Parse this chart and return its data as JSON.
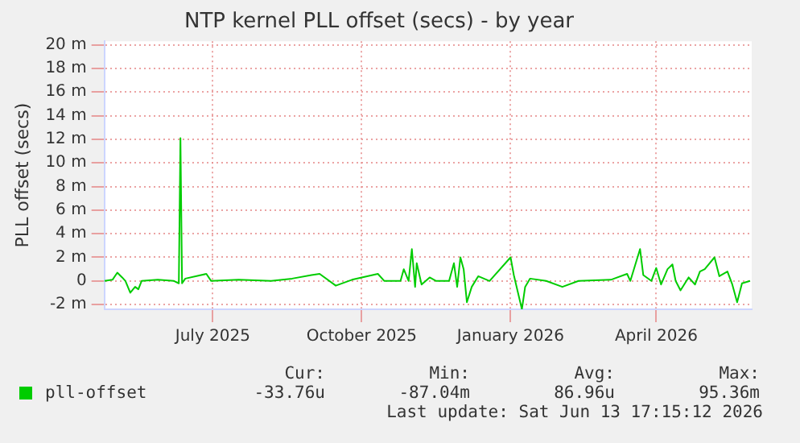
{
  "chart_data": {
    "type": "line",
    "title": "NTP kernel PLL offset (secs) - by year",
    "ylabel": "PLL offset (secs)",
    "x": [
      "2025-05-09",
      "2025-05-14",
      "2025-05-17",
      "2025-05-20",
      "2025-05-22",
      "2025-05-25",
      "2025-05-28",
      "2025-05-30",
      "2025-06-01",
      "2025-06-11",
      "2025-06-21",
      "2025-06-24",
      "2025-06-25",
      "2025-06-26",
      "2025-06-28",
      "2025-07-11",
      "2025-07-14",
      "2025-07-31",
      "2025-08-20",
      "2025-09-02",
      "2025-09-14",
      "2025-09-19",
      "2025-09-29",
      "2025-10-09",
      "2025-10-25",
      "2025-10-29",
      "2025-11-08",
      "2025-11-10",
      "2025-11-13",
      "2025-11-15",
      "2025-11-17",
      "2025-11-18",
      "2025-11-21",
      "2025-11-26",
      "2025-11-30",
      "2025-12-08",
      "2025-12-11",
      "2025-12-13",
      "2025-12-15",
      "2025-12-17",
      "2025-12-19",
      "2025-12-22",
      "2025-12-26",
      "2026-01-02",
      "2026-01-15",
      "2026-01-17",
      "2026-01-22",
      "2026-01-24",
      "2026-01-27",
      "2026-02-06",
      "2026-02-16",
      "2026-02-26",
      "2026-03-18",
      "2026-03-28",
      "2026-03-30",
      "2026-04-05",
      "2026-04-07",
      "2026-04-12",
      "2026-04-15",
      "2026-04-18",
      "2026-04-22",
      "2026-04-25",
      "2026-04-27",
      "2026-04-30",
      "2026-05-05",
      "2026-05-09",
      "2026-05-12",
      "2026-05-15",
      "2026-05-21",
      "2026-05-24",
      "2026-05-29",
      "2026-06-01",
      "2026-06-04",
      "2026-06-07",
      "2026-06-12"
    ],
    "series": [
      {
        "name": "pll-offset",
        "color": "#00cc00",
        "values": [
          0,
          0.1,
          0.7,
          0.3,
          0,
          -1.0,
          -0.5,
          -0.7,
          0,
          0.1,
          0,
          -0.2,
          12.1,
          -0.2,
          0.2,
          0.6,
          0,
          0.1,
          0,
          0.2,
          0.5,
          0.6,
          -0.4,
          0.1,
          0.6,
          0,
          0,
          1.0,
          0,
          2.7,
          -0.5,
          1.5,
          -0.3,
          0.3,
          0,
          0,
          1.5,
          -0.5,
          2.0,
          1.0,
          -1.8,
          -0.5,
          0.4,
          0,
          2.0,
          0.5,
          -2.4,
          -0.5,
          0.2,
          0,
          -0.5,
          0,
          0.1,
          0.6,
          0,
          2.7,
          0.5,
          0,
          1.1,
          -0.3,
          1.0,
          1.4,
          0,
          -0.8,
          0.3,
          -0.3,
          0.8,
          1.0,
          2.0,
          0.4,
          0.8,
          -0.3,
          -1.8,
          -0.2,
          0
        ]
      }
    ],
    "xlim": [
      "2025-05-09",
      "2026-06-13"
    ],
    "xticks": [
      {
        "value": "2025-07-15",
        "label": "July 2025"
      },
      {
        "value": "2025-10-15",
        "label": "October 2025"
      },
      {
        "value": "2026-01-15",
        "label": "January 2026"
      },
      {
        "value": "2026-04-15",
        "label": "April 2026"
      }
    ],
    "ylim": [
      -2.4,
      20.3
    ],
    "yticks": [
      {
        "value": -2,
        "label": "-2 m"
      },
      0,
      {
        "value": 2,
        "label": "2 m"
      },
      {
        "value": 4,
        "label": "4 m"
      },
      {
        "value": 6,
        "label": "6 m"
      },
      {
        "value": 8,
        "label": "8 m"
      },
      {
        "value": 10,
        "label": "10 m"
      },
      {
        "value": 12,
        "label": "12 m"
      },
      {
        "value": 14,
        "label": "14 m"
      },
      {
        "value": 16,
        "label": "16 m"
      },
      {
        "value": 18,
        "label": "18 m"
      },
      {
        "value": 20,
        "label": "20 m"
      }
    ],
    "grid": true,
    "legend": "bottom",
    "marker": "none",
    "line_style": "solid",
    "annotations": [
      "Cur:",
      "Min:",
      "Avg:",
      "Max:",
      "-33.76u",
      "-87.04m",
      "86.96u",
      "95.36m",
      "Last update: Sat Jun 13 17:15:12 2026"
    ]
  }
}
